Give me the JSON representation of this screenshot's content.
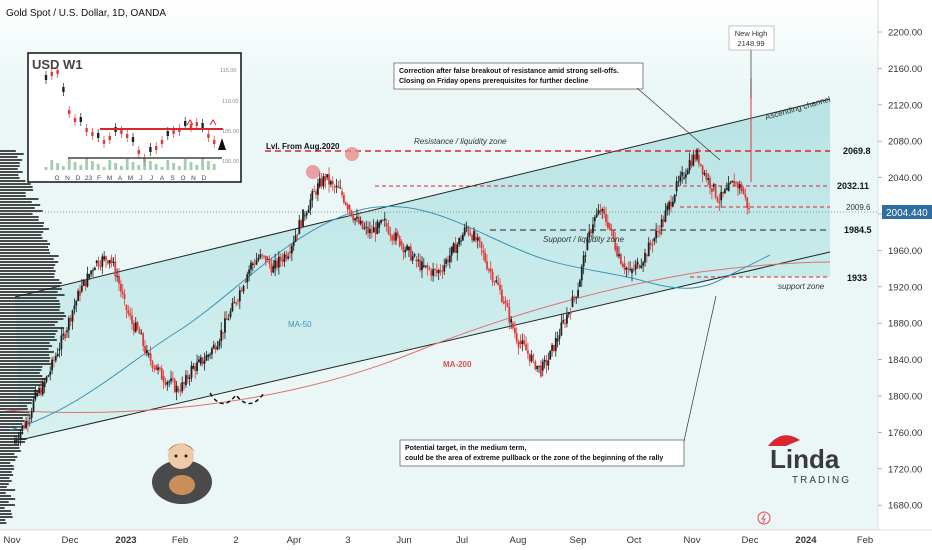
{
  "header": {
    "title": "Gold Spot / U.S. Dollar, 1D, OANDA"
  },
  "chart_data": {
    "type": "candlestick",
    "symbol_title": "Gold Spot / U.S. Dollar, 1D, OANDA",
    "y_axis": {
      "range": [
        1660,
        2225
      ],
      "ticks": [
        1680,
        1720,
        1760,
        1800,
        1840,
        1880,
        1920,
        1960,
        2000,
        2040,
        2080,
        2120,
        2160,
        2200
      ]
    },
    "x_axis": {
      "tick_labels": [
        "Nov",
        "Dec",
        "2023",
        "Feb",
        "2",
        "Apr",
        "3",
        "Jun",
        "Jul",
        "Aug",
        "Sep",
        "Oct",
        "Nov",
        "Dec",
        "2024",
        "Feb"
      ]
    },
    "last_price": "2004.440",
    "price_path": [
      [
        1760,
        1748
      ],
      [
        1785,
        1762
      ],
      [
        1800,
        1775
      ],
      [
        1802,
        1800
      ],
      [
        1808,
        1810
      ],
      [
        1815,
        1828
      ],
      [
        1825,
        1850
      ],
      [
        1832,
        1870
      ],
      [
        1848,
        1895
      ],
      [
        1860,
        1915
      ],
      [
        1870,
        1930
      ],
      [
        1878,
        1946
      ],
      [
        1892,
        1950
      ],
      [
        1905,
        1952
      ],
      [
        1930,
        1932
      ],
      [
        1968,
        1900
      ],
      [
        1998,
        1880
      ],
      [
        2030,
        1868
      ],
      [
        2060,
        1845
      ],
      [
        2087,
        1834
      ],
      [
        2108,
        1822
      ],
      [
        2120,
        1816
      ],
      [
        2146,
        1808
      ],
      [
        2160,
        1812
      ],
      [
        2178,
        1830
      ],
      [
        2200,
        1835
      ],
      [
        2215,
        1843
      ],
      [
        2233,
        1854
      ],
      [
        2248,
        1870
      ],
      [
        2263,
        1887
      ],
      [
        2285,
        1905
      ],
      [
        2312,
        1926
      ],
      [
        2340,
        1944
      ],
      [
        2368,
        1952
      ],
      [
        2385,
        1950
      ],
      [
        2398,
        1940
      ],
      [
        2412,
        1950
      ],
      [
        2434,
        1959
      ],
      [
        2452,
        1978
      ],
      [
        2466,
        1998
      ],
      [
        2477,
        2015
      ],
      [
        2487,
        2030
      ],
      [
        2496,
        2040
      ],
      [
        2504,
        2030
      ],
      [
        2512,
        2025
      ],
      [
        2518,
        2010
      ],
      [
        2524,
        1995
      ],
      [
        2532,
        1984
      ],
      [
        2540,
        1980
      ],
      [
        2550,
        1985
      ],
      [
        2560,
        1990
      ],
      [
        2566,
        1978
      ],
      [
        2572,
        1970
      ],
      [
        2582,
        1960
      ],
      [
        2592,
        1950
      ],
      [
        2602,
        1942
      ],
      [
        2615,
        1938
      ],
      [
        2625,
        1935
      ],
      [
        2640,
        1945
      ],
      [
        2652,
        1958
      ],
      [
        2660,
        1970
      ],
      [
        2668,
        1985
      ],
      [
        2676,
        1975
      ],
      [
        2688,
        1960
      ],
      [
        2700,
        1940
      ],
      [
        2712,
        1925
      ],
      [
        2722,
        1905
      ],
      [
        2730,
        1880
      ],
      [
        2740,
        1860
      ],
      [
        2750,
        1850
      ],
      [
        2760,
        1838
      ],
      [
        2770,
        1828
      ],
      [
        2780,
        1840
      ],
      [
        2790,
        1860
      ],
      [
        2800,
        1880
      ],
      [
        2812,
        1898
      ],
      [
        2824,
        1920
      ],
      [
        2836,
        1960
      ],
      [
        2848,
        1992
      ],
      [
        2862,
        2003
      ],
      [
        2876,
        1990
      ],
      [
        2890,
        1965
      ],
      [
        2904,
        1946
      ],
      [
        2916,
        1935
      ],
      [
        2926,
        1944
      ],
      [
        2934,
        1955
      ],
      [
        2942,
        1970
      ],
      [
        2950,
        1985
      ],
      [
        2960,
        2005
      ],
      [
        2968,
        2025
      ],
      [
        2974,
        2040
      ],
      [
        2980,
        2058
      ],
      [
        2986,
        2065
      ],
      [
        2990,
        2045
      ],
      [
        2994,
        2030
      ],
      [
        2998,
        2015
      ],
      [
        3002,
        2025
      ],
      [
        3006,
        2035
      ],
      [
        3010,
        2028
      ],
      [
        3014,
        2004
      ]
    ],
    "levels": [
      {
        "label": "2069.8",
        "price": 2069.8
      },
      {
        "label": "2032.11",
        "price": 2032.11
      },
      {
        "label": "2009.6",
        "price": 2009.6
      },
      {
        "label": "1984.5",
        "price": 1984.5
      },
      {
        "label": "1933",
        "price": 1933
      }
    ],
    "annotations": {
      "new_high": [
        "New High",
        "2148.99"
      ],
      "ascending_channel": "Ascending channel",
      "resistance_zone": "Resistance / liquidity zone",
      "lvl_aug_2020": "Lvl. From Aug.2020",
      "support_liquidity_zone": "Support / liquidity zone",
      "support_zone": "support zone",
      "ma50": "MA-50",
      "ma200": "MA-200",
      "callout_top": [
        "Correction after false breakout of resistance amid strong sell-offs.",
        "Closing on Friday opens prerequisites for further decline"
      ],
      "callout_bottom": [
        "Potential target, in the medium term,",
        "could be the area of extreme pullback or the zone of the beginning of the rally"
      ]
    },
    "inset": {
      "title": "USD W1",
      "y_ticks": [
        "115.00",
        "110.00",
        "105.00",
        "100.00"
      ],
      "x_labels": [
        "O",
        "N",
        "D",
        "23",
        "F",
        "M",
        "A",
        "M",
        "J",
        "J",
        "A",
        "S",
        "O",
        "N",
        "D"
      ]
    },
    "watermark": [
      "Linda",
      "TRADING"
    ]
  },
  "colors": {
    "up_candle": "#202020",
    "down_candle": "#e03a3a",
    "channel_fill": "#a9dede",
    "resistance": "#d9262f",
    "ma50": "#2e8bb0",
    "ma200": "#e07070"
  }
}
